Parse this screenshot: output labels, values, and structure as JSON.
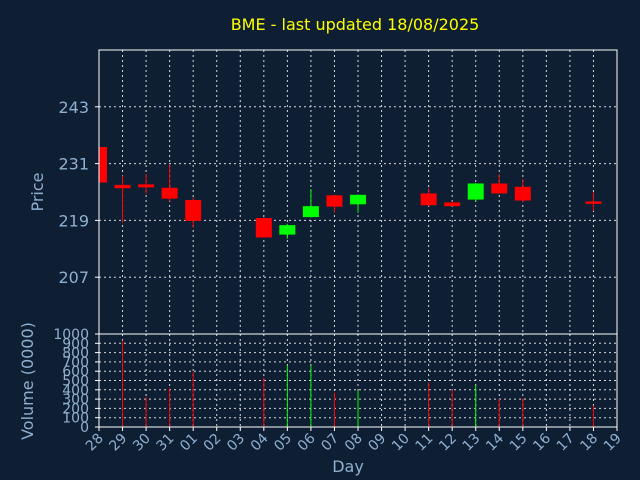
{
  "chart_data": {
    "type": "candlestick",
    "title": "BME - last updated 18/08/2025",
    "ylabel": "Price",
    "xlabel": "Day",
    "vol_label": "Volume (0000)",
    "price_ticks": [
      207,
      219,
      231,
      243
    ],
    "ylim": [
      195,
      255
    ],
    "vol_ticks": [
      "0",
      "100",
      "200",
      "300",
      "400",
      "500",
      "600",
      "700",
      "800",
      "900",
      "1000"
    ],
    "vol_lim": [
      0,
      1000
    ],
    "x_ticks": [
      "28",
      "29",
      "30",
      "31",
      "01",
      "02",
      "03",
      "04",
      "05",
      "06",
      "07",
      "08",
      "09",
      "10",
      "11",
      "12",
      "13",
      "14",
      "15",
      "16",
      "17",
      "18",
      "19"
    ],
    "colors": {
      "up": "#00ff00",
      "down": "#ff0000",
      "background": "#0f1f33"
    },
    "candles": [
      {
        "day": "28",
        "open": 234.5,
        "close": 227.0,
        "high": 234.5,
        "low": 227.0,
        "volume": 0
      },
      {
        "day": "29",
        "open": 226.5,
        "close": 225.8,
        "high": 228.5,
        "low": 218.5,
        "volume": 930
      },
      {
        "day": "30",
        "open": 226.4,
        "close": 226.2,
        "high": 228.8,
        "low": 224.6,
        "volume": 320
      },
      {
        "day": "31",
        "open": 225.9,
        "close": 223.6,
        "high": 230.8,
        "low": 223.0,
        "volume": 420
      },
      {
        "day": "01",
        "open": 223.3,
        "close": 218.9,
        "high": 223.8,
        "low": 217.5,
        "volume": 590
      },
      {
        "day": "04",
        "open": 219.5,
        "close": 215.4,
        "high": 219.6,
        "low": 215.3,
        "volume": 530
      },
      {
        "day": "05",
        "open": 216.0,
        "close": 218.0,
        "high": 218.3,
        "low": 215.1,
        "volume": 660
      },
      {
        "day": "06",
        "open": 219.7,
        "close": 222.0,
        "high": 225.6,
        "low": 219.6,
        "volume": 660
      },
      {
        "day": "07",
        "open": 224.3,
        "close": 221.9,
        "high": 224.3,
        "low": 220.7,
        "volume": 370
      },
      {
        "day": "08",
        "open": 222.4,
        "close": 224.4,
        "high": 224.5,
        "low": 220.6,
        "volume": 390
      },
      {
        "day": "11",
        "open": 224.7,
        "close": 222.2,
        "high": 225.8,
        "low": 222.0,
        "volume": 480
      },
      {
        "day": "12",
        "open": 222.8,
        "close": 222.0,
        "high": 223.0,
        "low": 222.0,
        "volume": 400
      },
      {
        "day": "13",
        "open": 223.4,
        "close": 226.8,
        "high": 226.9,
        "low": 222.9,
        "volume": 450
      },
      {
        "day": "14",
        "open": 226.8,
        "close": 224.7,
        "high": 228.7,
        "low": 224.6,
        "volume": 300
      },
      {
        "day": "15",
        "open": 226.1,
        "close": 223.2,
        "high": 227.7,
        "low": 222.8,
        "volume": 310
      },
      {
        "day": "18",
        "open": 223.0,
        "close": 222.5,
        "high": 225.0,
        "low": 221.0,
        "volume": 230
      }
    ]
  }
}
